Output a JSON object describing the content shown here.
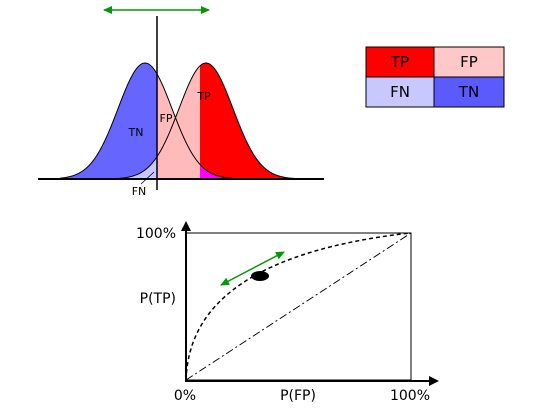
{
  "distributions": {
    "label_tp": "TP",
    "label_fp": "FP",
    "label_tn": "TN",
    "label_fn": "FN",
    "colors": {
      "negative": "#6666ff",
      "positive": "#ff0000",
      "overlap": "#ff00ff",
      "fp_region": "#ffbbbb",
      "fn_region": "#c8c8ff",
      "threshold_arrow": "#009900"
    }
  },
  "legend": {
    "cells": [
      {
        "label": "TP",
        "color": "#ff0000"
      },
      {
        "label": "FP",
        "color": "#ffc8c8"
      },
      {
        "label": "FN",
        "color": "#c8c8ff"
      },
      {
        "label": "TN",
        "color": "#5a5aff"
      }
    ]
  },
  "roc": {
    "y_top_label": "100%",
    "y_axis_label": "P(TP)",
    "x_origin_label": "0%",
    "x_axis_label": "P(FP)",
    "x_right_label": "100%",
    "operating_point_arrow_color": "#009900"
  }
}
